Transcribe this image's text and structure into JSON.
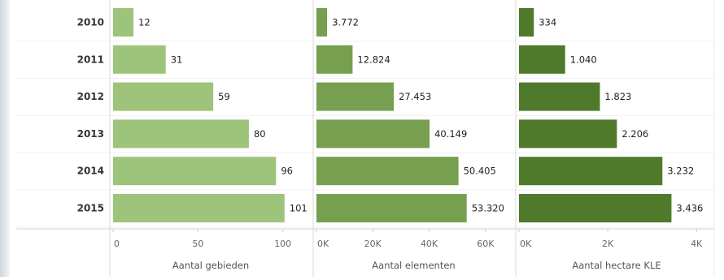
{
  "chart_data": {
    "type": "bar",
    "orientation": "horizontal",
    "categories": [
      "2010",
      "2011",
      "2012",
      "2013",
      "2014",
      "2015"
    ],
    "panels": [
      {
        "xlabel": "Aantal gebieden",
        "values": [
          12,
          31,
          59,
          80,
          96,
          101
        ],
        "value_labels": [
          "12",
          "31",
          "59",
          "80",
          "96",
          "101"
        ],
        "xlim": [
          0,
          115
        ],
        "ticks": [
          0,
          50,
          100
        ],
        "tick_labels": [
          "0",
          "50",
          "100"
        ],
        "color": "#9ec37a"
      },
      {
        "xlabel": "Aantal elementen",
        "values": [
          3772,
          12824,
          27453,
          40149,
          50405,
          53320
        ],
        "value_labels": [
          "3.772",
          "12.824",
          "27.453",
          "40.149",
          "50.405",
          "53.320"
        ],
        "xlim": [
          0,
          69000
        ],
        "ticks": [
          0,
          20000,
          40000,
          60000
        ],
        "tick_labels": [
          "0K",
          "20K",
          "40K",
          "60K"
        ],
        "color": "#76a04f"
      },
      {
        "xlabel": "Aantal hectare KLE",
        "values": [
          334,
          1040,
          1823,
          2206,
          3232,
          3436
        ],
        "value_labels": [
          "334",
          "1.040",
          "1.823",
          "2.206",
          "3.232",
          "3.436"
        ],
        "xlim": [
          0,
          4400
        ],
        "ticks": [
          0,
          2000,
          4000
        ],
        "tick_labels": [
          "0K",
          "2K",
          "4K"
        ],
        "color": "#4f7a2b"
      }
    ],
    "grid": false,
    "legend": "none"
  }
}
